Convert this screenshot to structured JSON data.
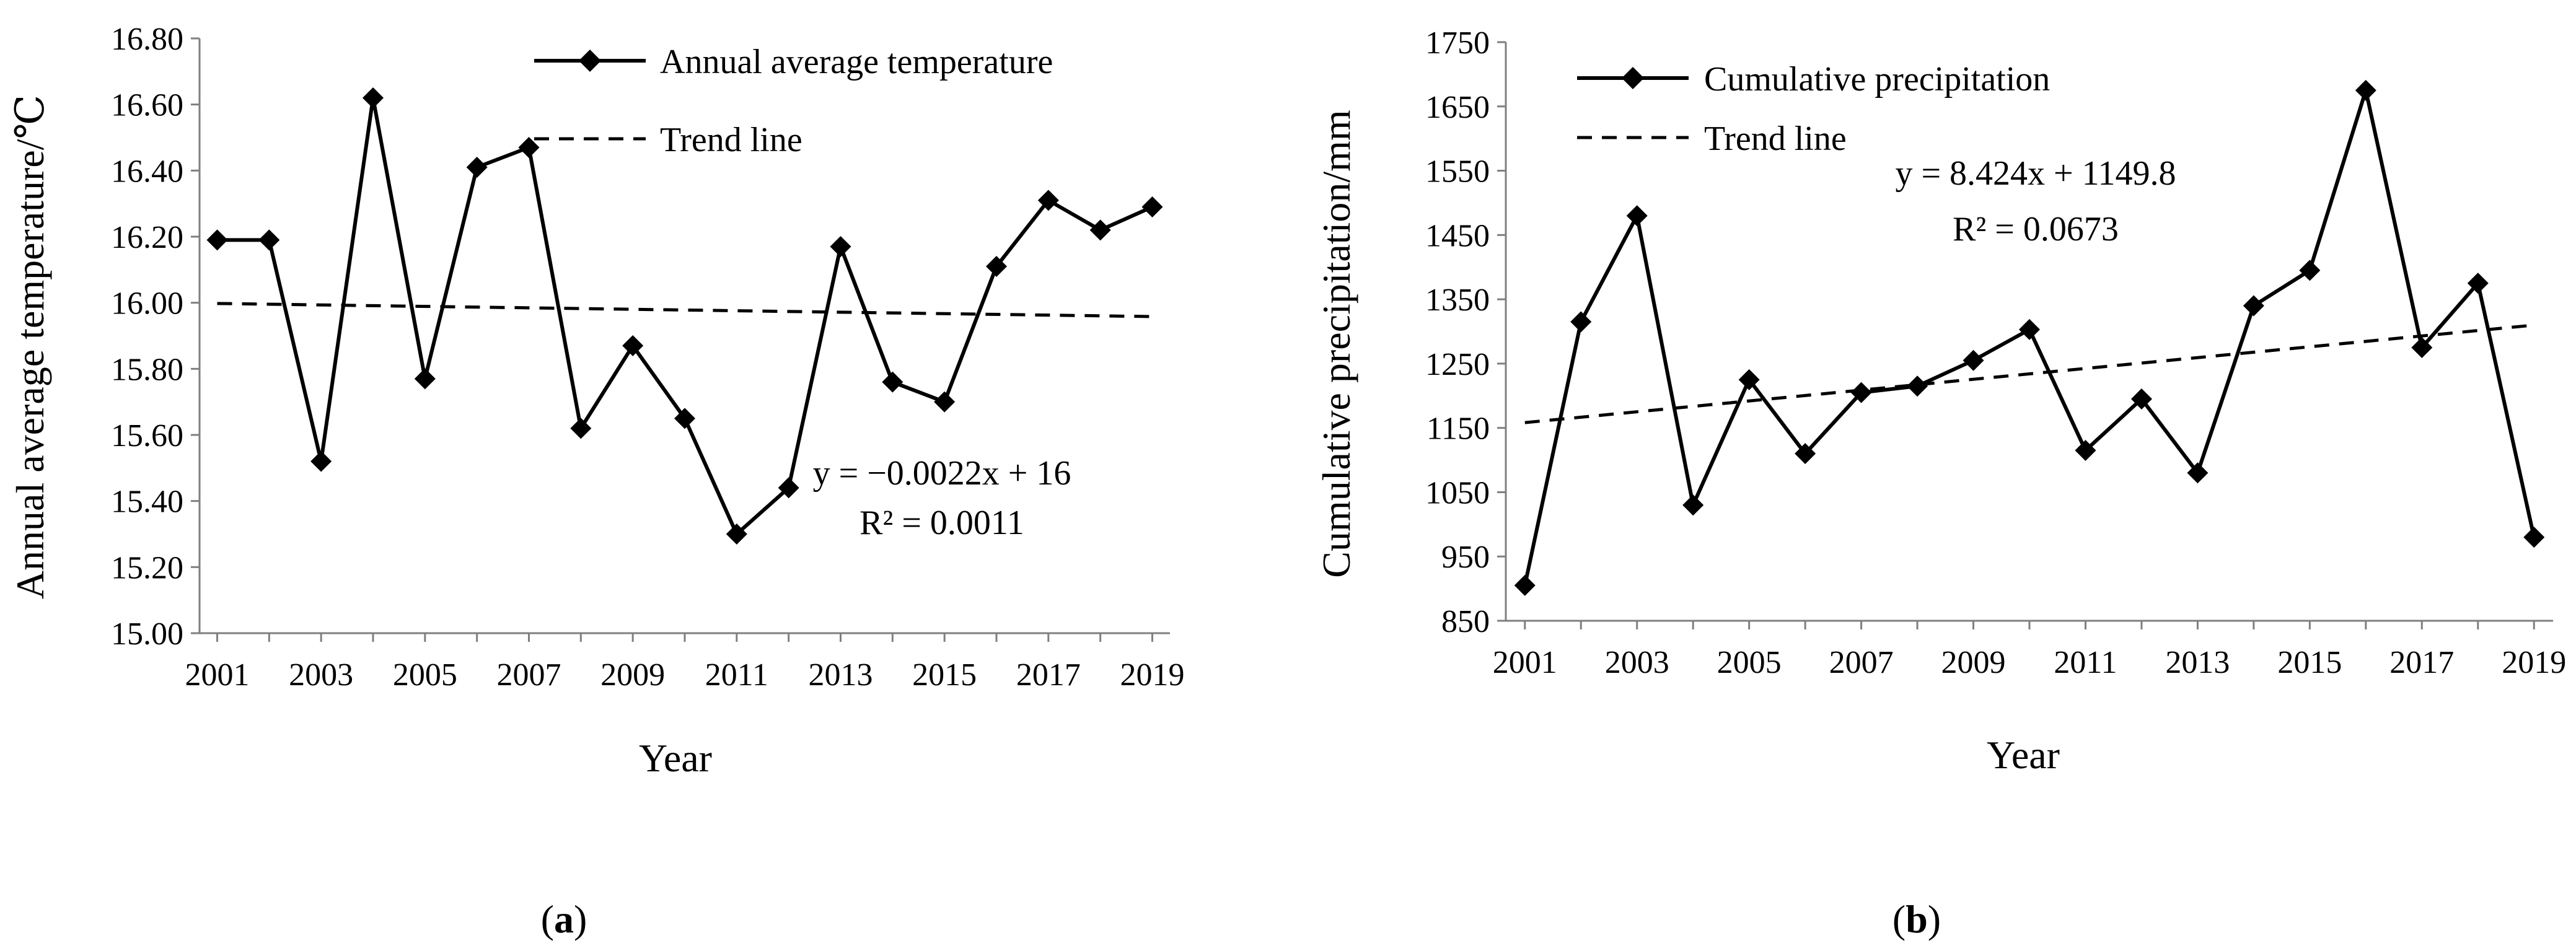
{
  "chart_data": [
    {
      "type": "line",
      "panel_label": "a",
      "xlabel": "Year",
      "ylabel": "Annual average temperature/℃",
      "x": [
        2001,
        2002,
        2003,
        2004,
        2005,
        2006,
        2007,
        2008,
        2009,
        2010,
        2011,
        2012,
        2013,
        2014,
        2015,
        2016,
        2017,
        2018,
        2019
      ],
      "x_tick_labels": [
        "2001",
        "2003",
        "2005",
        "2007",
        "2009",
        "2011",
        "2013",
        "2015",
        "2017",
        "2019"
      ],
      "y_tick_labels": [
        "15.00",
        "15.20",
        "15.40",
        "15.60",
        "15.80",
        "16.00",
        "16.20",
        "16.40",
        "16.60",
        "16.80"
      ],
      "ylim": [
        15.0,
        16.8
      ],
      "series": [
        {
          "name": "Annual average temperature",
          "style": "solid-diamond",
          "values": [
            16.19,
            16.19,
            15.52,
            16.62,
            15.77,
            16.41,
            16.47,
            15.62,
            15.87,
            15.65,
            15.3,
            15.44,
            16.17,
            15.76,
            15.7,
            16.11,
            16.31,
            16.22,
            16.29
          ]
        }
      ],
      "trend": {
        "name": "Trend line",
        "style": "dashed",
        "slope": -0.0022,
        "intercept": 16,
        "equation": "y = −0.0022x + 16",
        "r2": "R² = 0.0011"
      },
      "legend_position": "top-right"
    },
    {
      "type": "line",
      "panel_label": "b",
      "xlabel": "Year",
      "ylabel": "Cumulative precipitation/mm",
      "x": [
        2001,
        2002,
        2003,
        2004,
        2005,
        2006,
        2007,
        2008,
        2009,
        2010,
        2011,
        2012,
        2013,
        2014,
        2015,
        2016,
        2017,
        2018,
        2019
      ],
      "x_tick_labels": [
        "2001",
        "2003",
        "2005",
        "2007",
        "2009",
        "2011",
        "2013",
        "2015",
        "2017",
        "2019"
      ],
      "y_tick_labels": [
        "850",
        "950",
        "1050",
        "1150",
        "1250",
        "1350",
        "1450",
        "1550",
        "1650",
        "1750"
      ],
      "ylim": [
        850,
        1750
      ],
      "series": [
        {
          "name": "Cumulative precipitation",
          "style": "solid-diamond",
          "values": [
            905,
            1315,
            1480,
            1030,
            1225,
            1110,
            1205,
            1215,
            1255,
            1303,
            1115,
            1195,
            1080,
            1340,
            1395,
            1675,
            1275,
            1375,
            980
          ]
        }
      ],
      "trend": {
        "name": "Trend line",
        "style": "dashed",
        "slope": 8.424,
        "intercept": 1149.8,
        "equation": "y = 8.424x + 1149.8",
        "r2": "R² = 0.0673"
      },
      "legend_position": "top-left"
    }
  ]
}
